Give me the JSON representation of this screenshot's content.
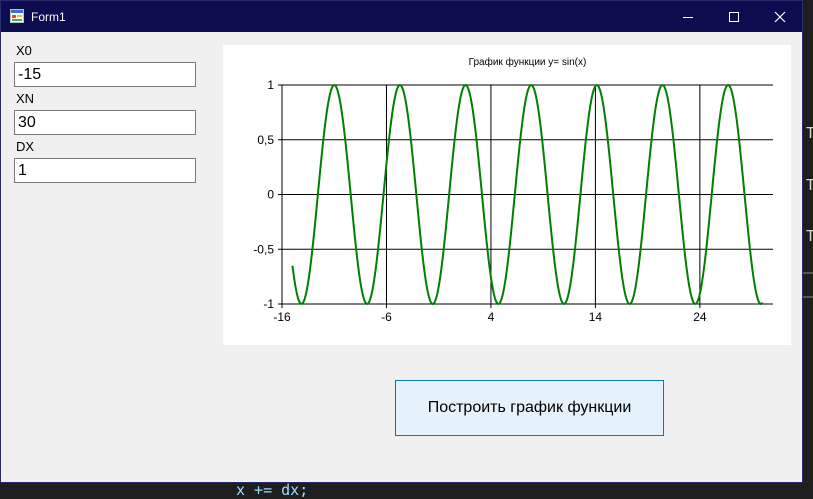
{
  "window": {
    "title": "Form1"
  },
  "background_code": {
    "line": "x += dx;",
    "side_letter": "T"
  },
  "inputs": {
    "x0": {
      "label": "X0",
      "value": "-15"
    },
    "xn": {
      "label": "XN",
      "value": "30"
    },
    "dx": {
      "label": "DX",
      "value": "1"
    }
  },
  "button": {
    "label": "Построить график функции"
  },
  "chart_data": {
    "type": "line",
    "title": "График функции y= sin(x)",
    "xlabel": "",
    "ylabel": "",
    "x_ticks": [
      "-16",
      "-6",
      "4",
      "14",
      "24"
    ],
    "y_ticks": [
      "1",
      "0,5",
      "0",
      "-0,5",
      "-1"
    ],
    "xlim": [
      -16,
      31
    ],
    "ylim": [
      -1,
      1
    ],
    "grid": true,
    "series": [
      {
        "function": "sin",
        "x_start": -15,
        "x_end": 30,
        "color": "#008000"
      }
    ]
  },
  "colors": {
    "titlebar": "#0c0c50",
    "series": "#008000",
    "button_bg": "#e5f1fb",
    "button_border": "#0078d7"
  }
}
